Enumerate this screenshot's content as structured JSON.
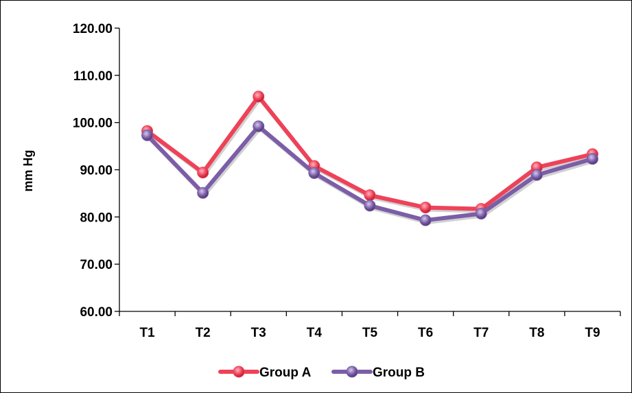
{
  "chart_data": {
    "type": "line",
    "categories": [
      "T1",
      "T2",
      "T3",
      "T4",
      "T5",
      "T6",
      "T7",
      "T8",
      "T9"
    ],
    "series": [
      {
        "name": "Group A",
        "values": [
          98.2,
          89.4,
          105.5,
          90.8,
          84.6,
          82.0,
          81.7,
          90.5,
          93.3
        ],
        "color": "#ee4258"
      },
      {
        "name": "Group B",
        "values": [
          97.3,
          85.1,
          99.2,
          89.3,
          82.4,
          79.3,
          80.7,
          88.9,
          92.3
        ],
        "color": "#7b5ea7"
      }
    ],
    "title": "",
    "xlabel": "",
    "ylabel": "mm Hg",
    "ylim": [
      60,
      120
    ],
    "yticks": [
      "60.00",
      "70.00",
      "80.00",
      "90.00",
      "100.00",
      "110.00",
      "120.00"
    ],
    "grid": false,
    "legend_position": "bottom"
  }
}
